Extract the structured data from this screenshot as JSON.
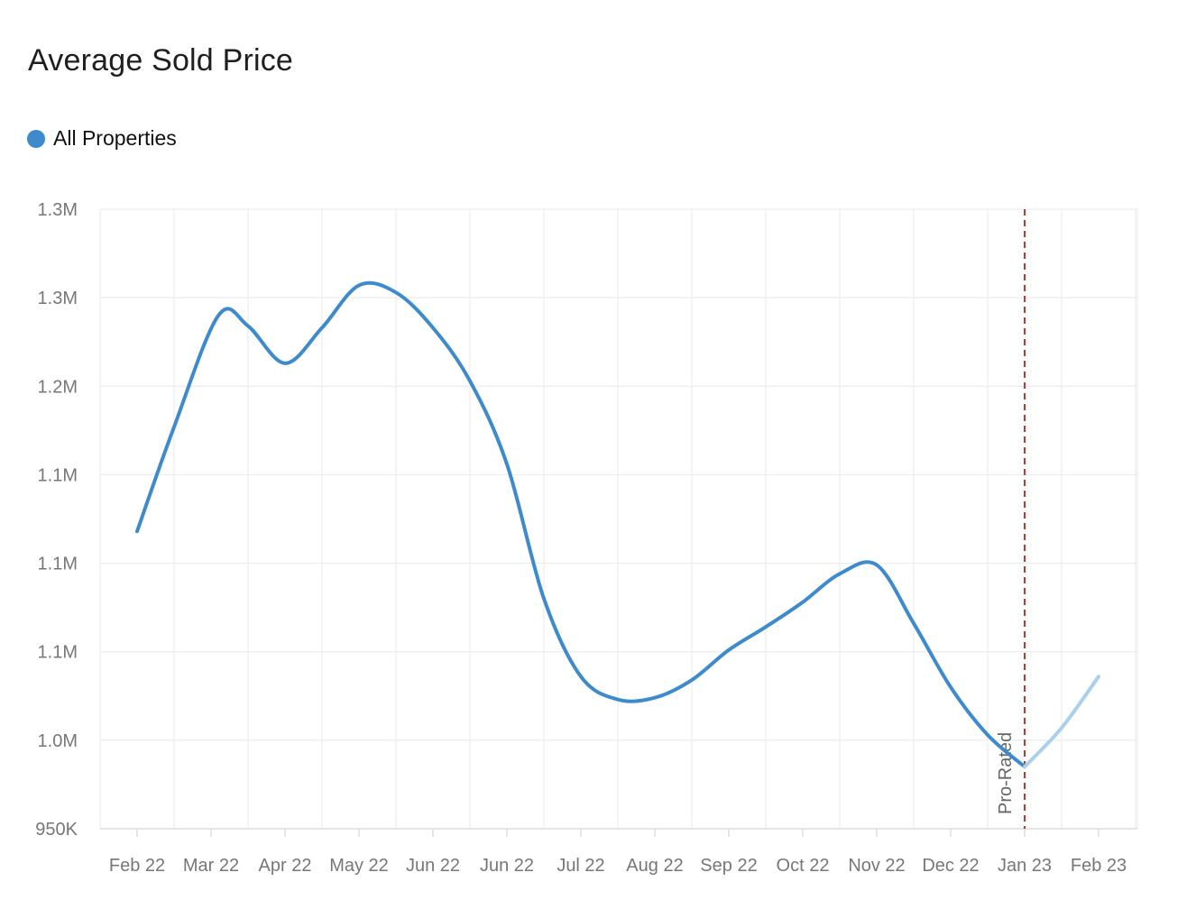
{
  "chart_data": {
    "type": "line",
    "title": "Average Sold Price",
    "xlabel": "",
    "ylabel": "",
    "categories": [
      "Feb 22",
      "Mar 22",
      "Apr 22",
      "May 22",
      "Jun 22",
      "Jun 22",
      "Jul 22",
      "Aug 22",
      "Sep 22",
      "Oct 22",
      "Nov 22",
      "Dec 22",
      "Jan 23",
      "Feb 23"
    ],
    "y_ticks": [
      {
        "value": 950000,
        "label": "950K"
      },
      {
        "value": 1000000,
        "label": "1.0M"
      },
      {
        "value": 1050000,
        "label": "1.1M"
      },
      {
        "value": 1100000,
        "label": "1.1M"
      },
      {
        "value": 1150000,
        "label": "1.1M"
      },
      {
        "value": 1200000,
        "label": "1.2M"
      },
      {
        "value": 1250000,
        "label": "1.3M"
      },
      {
        "value": 1300000,
        "label": "1.3M"
      }
    ],
    "ylim": [
      950000,
      1300000
    ],
    "grid": true,
    "legend_placement": "top-left",
    "series": [
      {
        "name": "All Properties",
        "color": "#3d8bcd",
        "projected_color": "#a9d0ec",
        "points": [
          {
            "x": 0.0,
            "y": 1118000
          },
          {
            "x": 0.5,
            "y": 1177000
          },
          {
            "x": 1.1,
            "y": 1240000
          },
          {
            "x": 1.5,
            "y": 1234000
          },
          {
            "x": 2.0,
            "y": 1213000
          },
          {
            "x": 2.5,
            "y": 1233000
          },
          {
            "x": 3.0,
            "y": 1257000
          },
          {
            "x": 3.5,
            "y": 1253000
          },
          {
            "x": 4.0,
            "y": 1233000
          },
          {
            "x": 4.5,
            "y": 1203000
          },
          {
            "x": 5.0,
            "y": 1156000
          },
          {
            "x": 5.5,
            "y": 1080000
          },
          {
            "x": 6.0,
            "y": 1036000
          },
          {
            "x": 6.5,
            "y": 1023000
          },
          {
            "x": 7.0,
            "y": 1024000
          },
          {
            "x": 7.5,
            "y": 1034000
          },
          {
            "x": 8.0,
            "y": 1051000
          },
          {
            "x": 8.5,
            "y": 1064000
          },
          {
            "x": 9.0,
            "y": 1078000
          },
          {
            "x": 9.5,
            "y": 1094000
          },
          {
            "x": 10.0,
            "y": 1099000
          },
          {
            "x": 10.5,
            "y": 1066000
          },
          {
            "x": 11.0,
            "y": 1030000
          },
          {
            "x": 11.5,
            "y": 1003000
          },
          {
            "x": 12.0,
            "y": 985000
          }
        ],
        "projected_points": [
          {
            "x": 12.0,
            "y": 985000
          },
          {
            "x": 12.5,
            "y": 1007000
          },
          {
            "x": 13.0,
            "y": 1036000
          }
        ]
      }
    ],
    "annotations": [
      {
        "type": "vertical-line",
        "x": 12.0,
        "label": "Pro-Rated",
        "color": "#c0392b"
      }
    ]
  }
}
